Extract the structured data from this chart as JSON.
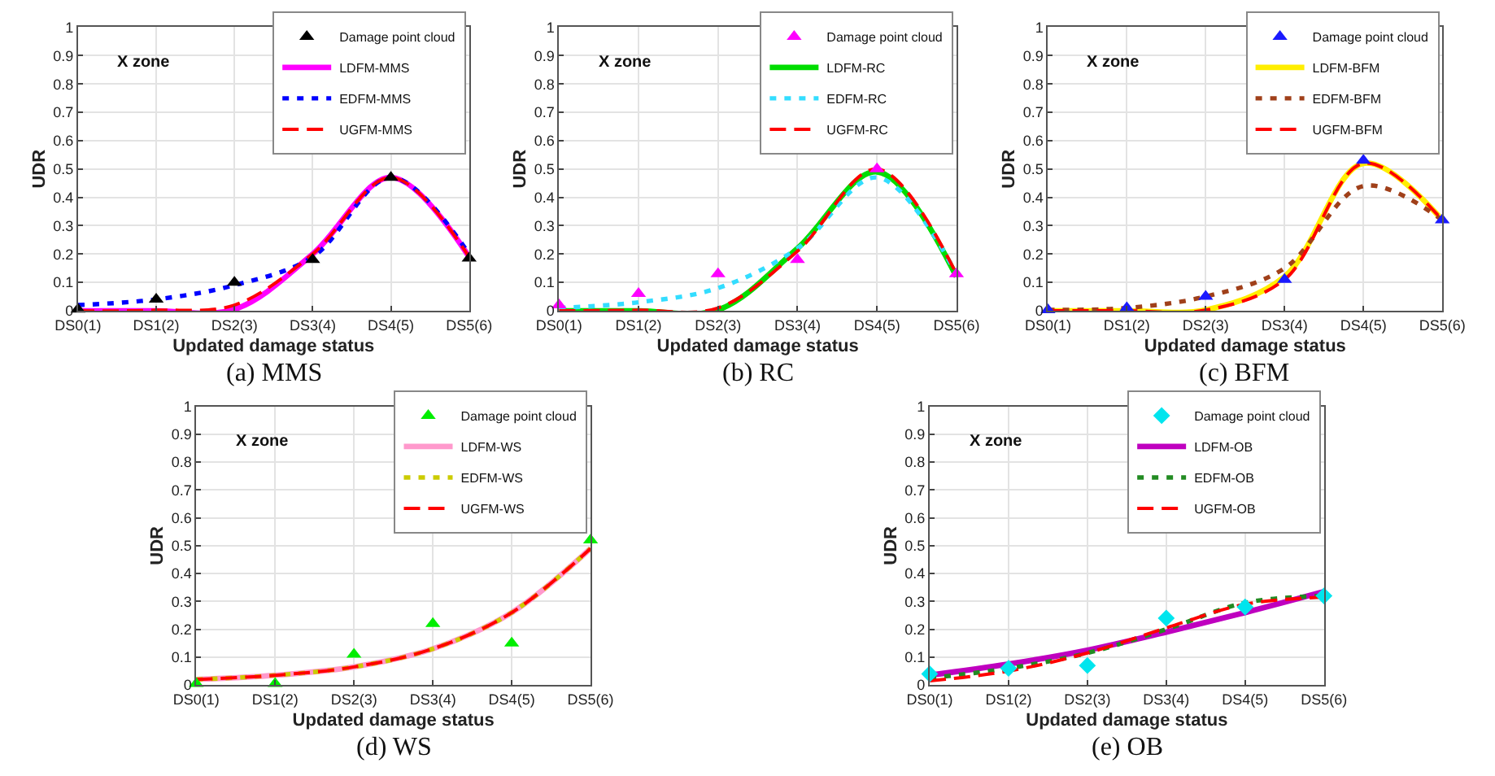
{
  "chart_data": [
    {
      "type": "line",
      "title": "(a) MMS",
      "xlabel": "Updated damage status",
      "ylabel": "UDR",
      "annotations": [
        "Χ zone"
      ],
      "grid": true,
      "legend": "top right",
      "ylim": [
        0,
        1
      ],
      "categories": [
        "DS0(1)",
        "DS1(2)",
        "DS2(3)",
        "DS3(4)",
        "DS4(5)",
        "DS5(6)"
      ],
      "yticks": [
        0,
        0.1,
        0.2,
        0.3,
        0.4,
        0.5,
        0.6,
        0.7,
        0.8,
        0.9,
        1
      ],
      "series": [
        {
          "name": "Damage point cloud",
          "type": "scatter",
          "marker": "triangle",
          "color": "#000000",
          "values": [
            0.005,
            0.04,
            0.1,
            0.18,
            0.47,
            0.185
          ]
        },
        {
          "name": "LDFM-MMS",
          "type": "line",
          "line_style": "solid",
          "color": "#ff00ff",
          "values": [
            0,
            0,
            0.005,
            0.2,
            0.47,
            0.19
          ]
        },
        {
          "name": "EDFM-MMS",
          "type": "line",
          "line_style": "dashed",
          "color": "#0000ff",
          "values": [
            0.02,
            0.04,
            0.09,
            0.19,
            0.47,
            0.2
          ]
        },
        {
          "name": "UGFM-MMS",
          "type": "line",
          "line_style": "dashed",
          "color": "#ff0000",
          "values": [
            0,
            0.002,
            0.02,
            0.2,
            0.47,
            0.19
          ]
        }
      ]
    },
    {
      "type": "line",
      "title": "(b) RC",
      "xlabel": "Updated damage status",
      "ylabel": "UDR",
      "annotations": [
        "Χ zone"
      ],
      "grid": true,
      "legend": "top right",
      "ylim": [
        0,
        1
      ],
      "categories": [
        "DS0(1)",
        "DS1(2)",
        "DS2(3)",
        "DS3(4)",
        "DS4(5)",
        "DS5(6)"
      ],
      "yticks": [
        0,
        0.1,
        0.2,
        0.3,
        0.4,
        0.5,
        0.6,
        0.7,
        0.8,
        0.9,
        1
      ],
      "series": [
        {
          "name": "Damage point cloud",
          "type": "scatter",
          "marker": "triangle",
          "color": "#ff00ff",
          "values": [
            0.02,
            0.06,
            0.13,
            0.18,
            0.5,
            0.13
          ]
        },
        {
          "name": "LDFM-RC",
          "type": "line",
          "line_style": "solid",
          "color": "#00dd00",
          "values": [
            0,
            0,
            0.003,
            0.22,
            0.49,
            0.12
          ]
        },
        {
          "name": "EDFM-RC",
          "type": "line",
          "line_style": "dashed",
          "color": "#33ddff",
          "values": [
            0.01,
            0.03,
            0.08,
            0.22,
            0.47,
            0.13
          ]
        },
        {
          "name": "UGFM-RC",
          "type": "line",
          "line_style": "dashed",
          "color": "#ff0000",
          "values": [
            0,
            0.002,
            0.01,
            0.21,
            0.5,
            0.13
          ]
        }
      ]
    },
    {
      "type": "line",
      "title": "(c) BFM",
      "xlabel": "Updated damage status",
      "ylabel": "UDR",
      "annotations": [
        "Χ zone"
      ],
      "grid": true,
      "legend": "top right",
      "ylim": [
        0,
        1
      ],
      "categories": [
        "DS0(1)",
        "DS1(2)",
        "DS2(3)",
        "DS3(4)",
        "DS4(5)",
        "DS5(6)"
      ],
      "yticks": [
        0,
        0.1,
        0.2,
        0.3,
        0.4,
        0.5,
        0.6,
        0.7,
        0.8,
        0.9,
        1
      ],
      "series": [
        {
          "name": "Damage point cloud",
          "type": "scatter",
          "marker": "triangle",
          "color": "#1a1aff",
          "values": [
            0.003,
            0.01,
            0.05,
            0.11,
            0.53,
            0.32
          ]
        },
        {
          "name": "LDFM-BFM",
          "type": "line",
          "line_style": "solid",
          "color": "#ffee00",
          "values": [
            0,
            0,
            0.003,
            0.12,
            0.52,
            0.32
          ]
        },
        {
          "name": "EDFM-BFM",
          "type": "line",
          "line_style": "dashed",
          "color": "#a0401a",
          "values": [
            0.003,
            0.01,
            0.05,
            0.15,
            0.44,
            0.32
          ]
        },
        {
          "name": "UGFM-BFM",
          "type": "line",
          "line_style": "dashed",
          "color": "#ff0000",
          "values": [
            0,
            0,
            0.002,
            0.11,
            0.52,
            0.32
          ]
        }
      ]
    },
    {
      "type": "line",
      "title": "(d) WS",
      "xlabel": "Updated damage status",
      "ylabel": "UDR",
      "annotations": [
        "Χ zone"
      ],
      "grid": true,
      "legend": "top right",
      "ylim": [
        0,
        1
      ],
      "categories": [
        "DS0(1)",
        "DS1(2)",
        "DS2(3)",
        "DS3(4)",
        "DS4(5)",
        "DS5(6)"
      ],
      "yticks": [
        0,
        0.1,
        0.2,
        0.3,
        0.4,
        0.5,
        0.6,
        0.7,
        0.8,
        0.9,
        1
      ],
      "series": [
        {
          "name": "Damage point cloud",
          "type": "scatter",
          "marker": "triangle",
          "color": "#00ee00",
          "values": [
            0.005,
            0.005,
            0.11,
            0.22,
            0.15,
            0.52
          ]
        },
        {
          "name": "LDFM-WS",
          "type": "line",
          "line_style": "solid",
          "color": "#ff99cc",
          "values": [
            0.02,
            0.035,
            0.065,
            0.13,
            0.26,
            0.49
          ]
        },
        {
          "name": "EDFM-WS",
          "type": "line",
          "line_style": "dashed",
          "color": "#cccc00",
          "values": [
            0.02,
            0.035,
            0.065,
            0.13,
            0.26,
            0.49
          ]
        },
        {
          "name": "UGFM-WS",
          "type": "line",
          "line_style": "dashed",
          "color": "#ff0000",
          "values": [
            0.02,
            0.035,
            0.065,
            0.13,
            0.26,
            0.49
          ]
        }
      ]
    },
    {
      "type": "line",
      "title": "(e) OB",
      "xlabel": "Updated damage status",
      "ylabel": "UDR",
      "annotations": [
        "Χ zone"
      ],
      "grid": true,
      "legend": "top right",
      "ylim": [
        0,
        1
      ],
      "categories": [
        "DS0(1)",
        "DS1(2)",
        "DS2(3)",
        "DS3(4)",
        "DS4(5)",
        "DS5(6)"
      ],
      "yticks": [
        0,
        0.1,
        0.2,
        0.3,
        0.4,
        0.5,
        0.6,
        0.7,
        0.8,
        0.9,
        1
      ],
      "series": [
        {
          "name": "Damage point cloud",
          "type": "scatter",
          "marker": "diamond",
          "color": "#00e5ee",
          "values": [
            0.04,
            0.06,
            0.07,
            0.24,
            0.28,
            0.32
          ]
        },
        {
          "name": "LDFM-OB",
          "type": "line",
          "line_style": "solid",
          "color": "#bf00bf",
          "values": [
            0.035,
            0.075,
            0.125,
            0.19,
            0.26,
            0.335
          ]
        },
        {
          "name": "EDFM-OB",
          "type": "line",
          "line_style": "dashed",
          "color": "#228b22",
          "values": [
            0.025,
            0.06,
            0.115,
            0.2,
            0.295,
            0.32
          ]
        },
        {
          "name": "UGFM-OB",
          "type": "line",
          "line_style": "dashed",
          "color": "#ff0000",
          "values": [
            0.015,
            0.05,
            0.115,
            0.205,
            0.29,
            0.315
          ]
        }
      ]
    }
  ]
}
